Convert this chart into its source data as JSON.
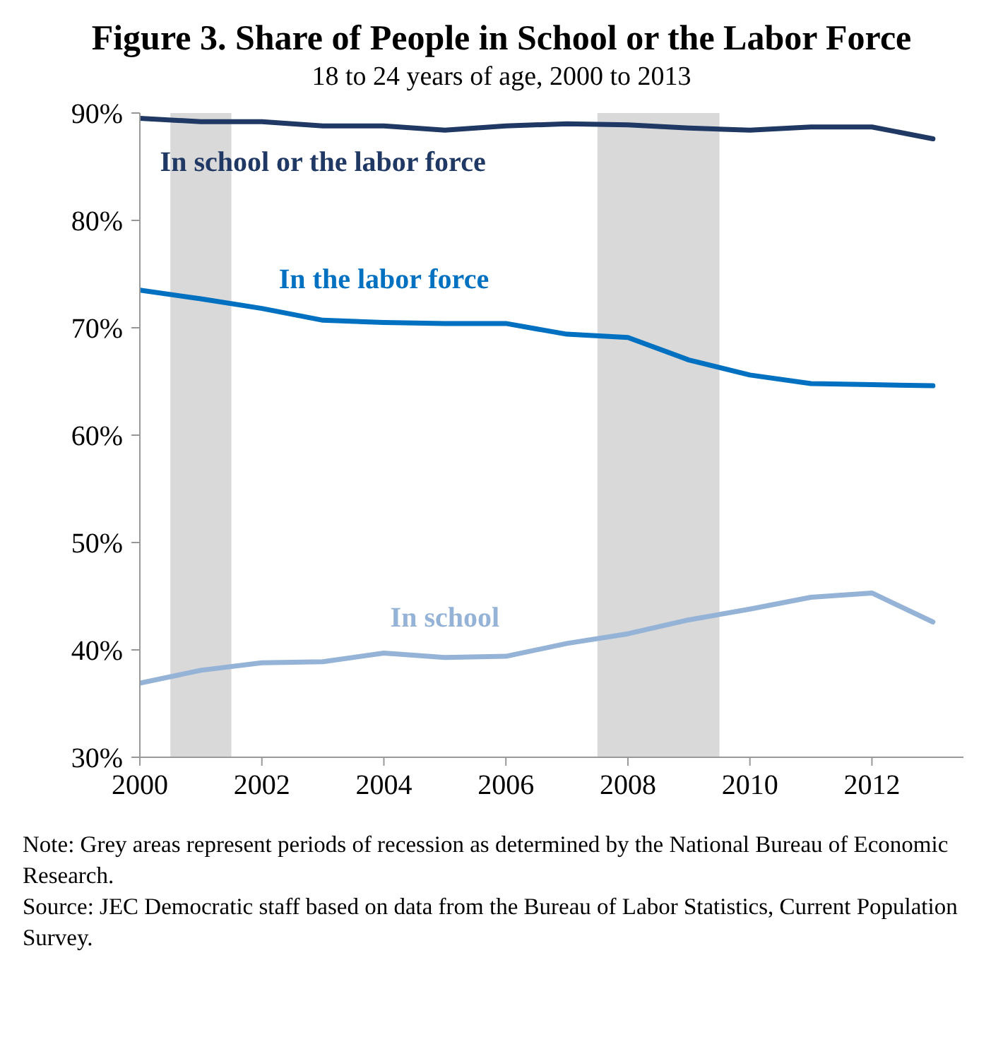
{
  "chart_data": {
    "type": "line",
    "title": "Figure 3. Share of People in School or the Labor Force",
    "subtitle": "18 to 24 years of age, 2000 to 2013",
    "x": [
      2000,
      2001,
      2002,
      2003,
      2004,
      2005,
      2006,
      2007,
      2008,
      2009,
      2010,
      2011,
      2012,
      2013
    ],
    "series": [
      {
        "name": "In school or the labor force",
        "color": "#1f3864",
        "values": [
          89.5,
          89.2,
          89.2,
          88.8,
          88.8,
          88.4,
          88.8,
          89.0,
          88.9,
          88.6,
          88.4,
          88.7,
          88.7,
          87.6
        ]
      },
      {
        "name": "In the labor force",
        "color": "#0070c0",
        "values": [
          73.5,
          72.7,
          71.8,
          70.7,
          70.5,
          70.4,
          70.4,
          69.4,
          69.1,
          67.0,
          65.6,
          64.8,
          64.7,
          64.6
        ]
      },
      {
        "name": "In school",
        "color": "#95b3d7",
        "values": [
          36.9,
          38.1,
          38.8,
          38.9,
          39.7,
          39.3,
          39.4,
          40.6,
          41.5,
          42.8,
          43.8,
          44.9,
          45.3,
          42.6
        ]
      }
    ],
    "xlim": [
      2000,
      2013.5
    ],
    "xticks": [
      2000,
      2002,
      2004,
      2006,
      2008,
      2010,
      2012
    ],
    "ylim": [
      30,
      90
    ],
    "yticks": [
      {
        "value": 30,
        "label": "30%"
      },
      {
        "value": 40,
        "label": "40%"
      },
      {
        "value": 50,
        "label": "50%"
      },
      {
        "value": 60,
        "label": "60%"
      },
      {
        "value": 70,
        "label": "70%"
      },
      {
        "value": 80,
        "label": "80%"
      },
      {
        "value": 90,
        "label": "90%"
      }
    ],
    "bands": [
      {
        "axis": "x",
        "from": 2000.5,
        "to": 2001.5,
        "color": "#d9d9d9"
      },
      {
        "axis": "x",
        "from": 2007.5,
        "to": 2009.5,
        "color": "#d9d9d9"
      }
    ],
    "grid": false,
    "legend": false,
    "marker": "none",
    "line_style": "solid",
    "annotations": [
      "Note: Grey areas represent periods of recession as determined by the National Bureau of Economic Research.",
      "Source: JEC Democratic staff based on data from the Bureau of Labor Statistics, Current Population Survey."
    ]
  }
}
